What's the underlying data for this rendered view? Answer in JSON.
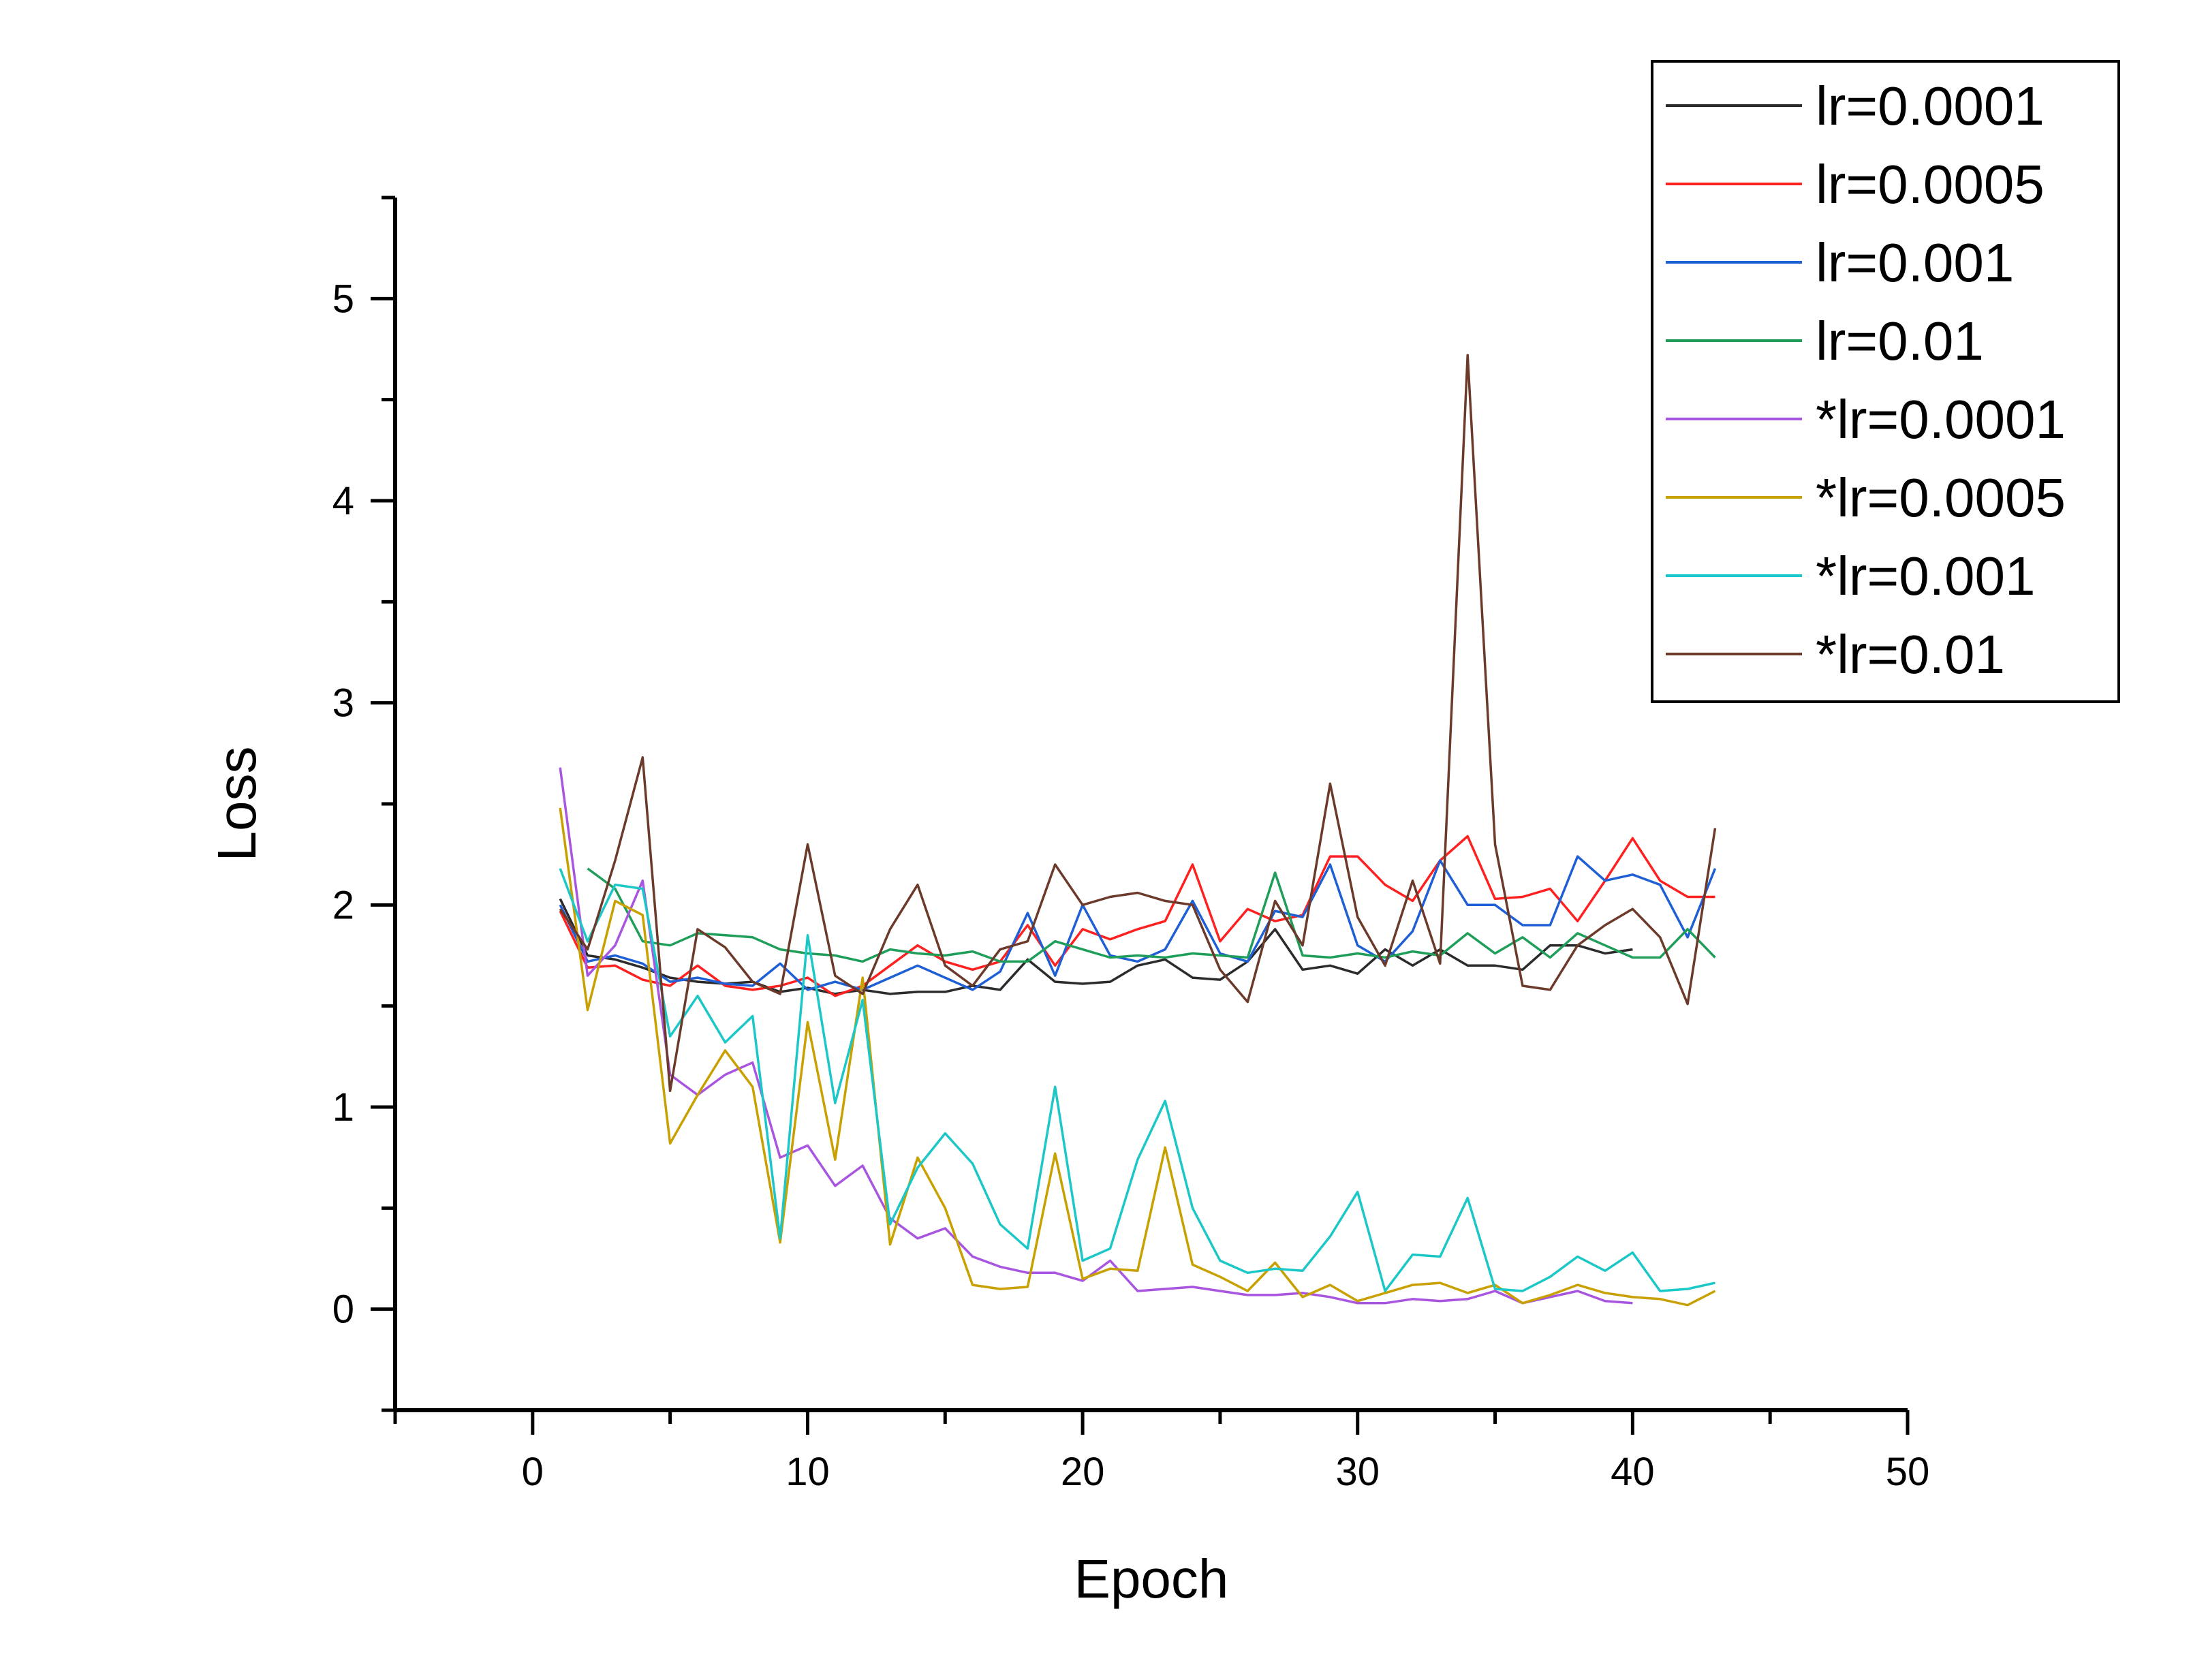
{
  "chart_data": {
    "type": "line",
    "title": "",
    "xlabel": "Epoch",
    "ylabel": "Loss",
    "xlim": [
      -5,
      50
    ],
    "ylim": [
      -0.5,
      5.5
    ],
    "xticks": [
      0,
      10,
      20,
      30,
      40,
      50
    ],
    "yticks": [
      0,
      1,
      2,
      3,
      4,
      5
    ],
    "grid": false,
    "legend": {
      "position": "top-right",
      "boxed": true
    },
    "series": [
      {
        "name": "lr=0.0001",
        "color": "#2b2b2b",
        "x": [
          1,
          2,
          3,
          4,
          5,
          6,
          7,
          8,
          9,
          10,
          11,
          12,
          13,
          14,
          15,
          16,
          17,
          18,
          19,
          20,
          21,
          22,
          23,
          24,
          25,
          26,
          27,
          28,
          29,
          30,
          31,
          32,
          33,
          34,
          35,
          36,
          37,
          38,
          39,
          40
        ],
        "y": [
          2.03,
          1.75,
          1.73,
          1.69,
          1.64,
          1.62,
          1.61,
          1.62,
          1.57,
          1.59,
          1.56,
          1.58,
          1.56,
          1.57,
          1.57,
          1.6,
          1.58,
          1.73,
          1.62,
          1.61,
          1.62,
          1.7,
          1.73,
          1.64,
          1.63,
          1.72,
          1.88,
          1.68,
          1.7,
          1.66,
          1.78,
          1.7,
          1.78,
          1.7,
          1.7,
          1.68,
          1.8,
          1.8,
          1.76,
          1.78
        ]
      },
      {
        "name": "lr=0.0005",
        "color": "#ff2020",
        "x": [
          1,
          2,
          3,
          4,
          5,
          6,
          7,
          8,
          9,
          10,
          11,
          12,
          13,
          14,
          15,
          16,
          17,
          18,
          19,
          20,
          21,
          22,
          23,
          24,
          25,
          26,
          27,
          28,
          29,
          30,
          31,
          32,
          33,
          34,
          35,
          36,
          37,
          38,
          39,
          40,
          41,
          42,
          43
        ],
        "y": [
          1.97,
          1.69,
          1.7,
          1.63,
          1.6,
          1.7,
          1.6,
          1.58,
          1.6,
          1.64,
          1.55,
          1.6,
          1.7,
          1.8,
          1.72,
          1.68,
          1.72,
          1.9,
          1.7,
          1.88,
          1.83,
          1.88,
          1.92,
          2.2,
          1.82,
          1.98,
          1.92,
          1.95,
          2.24,
          2.24,
          2.1,
          2.02,
          2.22,
          2.34,
          2.03,
          2.04,
          2.08,
          1.92,
          2.12,
          2.33,
          2.12,
          2.04,
          2.04
        ]
      },
      {
        "name": "lr=0.001",
        "color": "#1f5fd6",
        "x": [
          1,
          2,
          3,
          4,
          5,
          6,
          7,
          8,
          9,
          10,
          11,
          12,
          13,
          14,
          15,
          16,
          17,
          18,
          19,
          20,
          21,
          22,
          23,
          24,
          25,
          26,
          27,
          28,
          29,
          30,
          31,
          32,
          33,
          34,
          35,
          36,
          37,
          38,
          39,
          40,
          41,
          42,
          43
        ],
        "y": [
          2.0,
          1.72,
          1.75,
          1.71,
          1.62,
          1.64,
          1.61,
          1.6,
          1.71,
          1.58,
          1.62,
          1.58,
          1.64,
          1.7,
          1.64,
          1.58,
          1.67,
          1.96,
          1.65,
          2.0,
          1.75,
          1.72,
          1.78,
          2.02,
          1.76,
          1.72,
          1.97,
          1.94,
          2.2,
          1.8,
          1.72,
          1.87,
          2.22,
          2.0,
          2.0,
          1.9,
          1.9,
          2.24,
          2.12,
          2.15,
          2.1,
          1.84,
          2.18
        ]
      },
      {
        "name": "lr=0.01",
        "color": "#1f9e5a",
        "x": [
          2,
          3,
          4,
          5,
          6,
          7,
          8,
          9,
          10,
          11,
          12,
          13,
          14,
          15,
          16,
          17,
          18,
          19,
          20,
          21,
          22,
          23,
          24,
          25,
          26,
          27,
          28,
          29,
          30,
          31,
          32,
          33,
          34,
          35,
          36,
          37,
          38,
          39,
          40,
          41,
          42,
          43
        ],
        "y": [
          2.18,
          2.08,
          1.82,
          1.8,
          1.86,
          1.85,
          1.84,
          1.78,
          1.76,
          1.75,
          1.72,
          1.78,
          1.76,
          1.75,
          1.77,
          1.72,
          1.72,
          1.82,
          1.78,
          1.74,
          1.75,
          1.74,
          1.76,
          1.75,
          1.74,
          2.16,
          1.75,
          1.74,
          1.76,
          1.74,
          1.77,
          1.75,
          1.86,
          1.76,
          1.84,
          1.74,
          1.86,
          1.8,
          1.74,
          1.74,
          1.88,
          1.74
        ]
      },
      {
        "name": "*lr=0.0001",
        "color": "#a855e0",
        "x": [
          1,
          2,
          3,
          4,
          5,
          6,
          7,
          8,
          9,
          10,
          11,
          12,
          13,
          14,
          15,
          16,
          17,
          18,
          19,
          20,
          21,
          22,
          23,
          24,
          25,
          26,
          27,
          28,
          29,
          30,
          31,
          32,
          33,
          34,
          35,
          36,
          37,
          38,
          39,
          40
        ],
        "y": [
          2.68,
          1.65,
          1.8,
          2.12,
          1.16,
          1.06,
          1.16,
          1.22,
          0.75,
          0.81,
          0.61,
          0.71,
          0.45,
          0.35,
          0.4,
          0.26,
          0.21,
          0.18,
          0.18,
          0.14,
          0.24,
          0.09,
          0.1,
          0.11,
          0.09,
          0.07,
          0.07,
          0.08,
          0.06,
          0.03,
          0.03,
          0.05,
          0.04,
          0.05,
          0.09,
          0.03,
          0.06,
          0.09,
          0.04,
          0.03
        ]
      },
      {
        "name": "*lr=0.0005",
        "color": "#c8a000",
        "x": [
          1,
          2,
          3,
          4,
          5,
          6,
          7,
          8,
          9,
          10,
          11,
          12,
          13,
          14,
          15,
          16,
          17,
          18,
          19,
          20,
          21,
          22,
          23,
          24,
          25,
          26,
          27,
          28,
          29,
          30,
          31,
          32,
          33,
          34,
          35,
          36,
          37,
          38,
          39,
          40,
          41,
          42,
          43
        ],
        "y": [
          2.48,
          1.48,
          2.02,
          1.95,
          0.82,
          1.06,
          1.28,
          1.1,
          0.33,
          1.42,
          0.74,
          1.64,
          0.32,
          0.75,
          0.5,
          0.12,
          0.1,
          0.11,
          0.77,
          0.15,
          0.2,
          0.19,
          0.8,
          0.22,
          0.16,
          0.09,
          0.23,
          0.06,
          0.12,
          0.04,
          0.08,
          0.12,
          0.13,
          0.08,
          0.12,
          0.03,
          0.07,
          0.12,
          0.08,
          0.06,
          0.05,
          0.02,
          0.09
        ]
      },
      {
        "name": "*lr=0.001",
        "color": "#1cc7c7",
        "x": [
          1,
          2,
          3,
          4,
          5,
          6,
          7,
          8,
          9,
          10,
          11,
          12,
          13,
          14,
          15,
          16,
          17,
          18,
          19,
          20,
          21,
          22,
          23,
          24,
          25,
          26,
          27,
          28,
          29,
          30,
          31,
          32,
          33,
          34,
          35,
          36,
          37,
          38,
          39,
          40,
          41,
          42,
          43
        ],
        "y": [
          2.18,
          1.82,
          2.1,
          2.08,
          1.35,
          1.55,
          1.32,
          1.45,
          0.35,
          1.85,
          1.02,
          1.53,
          0.42,
          0.7,
          0.87,
          0.72,
          0.42,
          0.3,
          1.1,
          0.24,
          0.3,
          0.74,
          1.03,
          0.5,
          0.24,
          0.18,
          0.2,
          0.19,
          0.36,
          0.58,
          0.09,
          0.27,
          0.26,
          0.55,
          0.1,
          0.09,
          0.16,
          0.26,
          0.19,
          0.28,
          0.09,
          0.1,
          0.13
        ]
      },
      {
        "name": "*lr=0.01",
        "color": "#6b3a2a",
        "x": [
          1,
          2,
          3,
          4,
          5,
          6,
          7,
          8,
          9,
          10,
          11,
          12,
          13,
          14,
          15,
          16,
          17,
          18,
          19,
          20,
          21,
          22,
          23,
          24,
          25,
          26,
          27,
          28,
          29,
          30,
          31,
          32,
          33,
          34,
          35,
          36,
          37,
          38,
          39,
          40,
          41,
          42,
          43
        ],
        "y": [
          1.98,
          1.78,
          2.22,
          2.73,
          1.08,
          1.88,
          1.79,
          1.62,
          1.56,
          2.3,
          1.65,
          1.56,
          1.88,
          2.1,
          1.7,
          1.6,
          1.78,
          1.82,
          2.2,
          2.0,
          2.04,
          2.06,
          2.02,
          2.0,
          1.68,
          1.52,
          2.02,
          1.8,
          2.6,
          1.94,
          1.7,
          2.12,
          1.71,
          4.72,
          2.3,
          1.6,
          1.58,
          1.8,
          1.9,
          1.98,
          1.84,
          1.51,
          2.38
        ]
      }
    ]
  }
}
